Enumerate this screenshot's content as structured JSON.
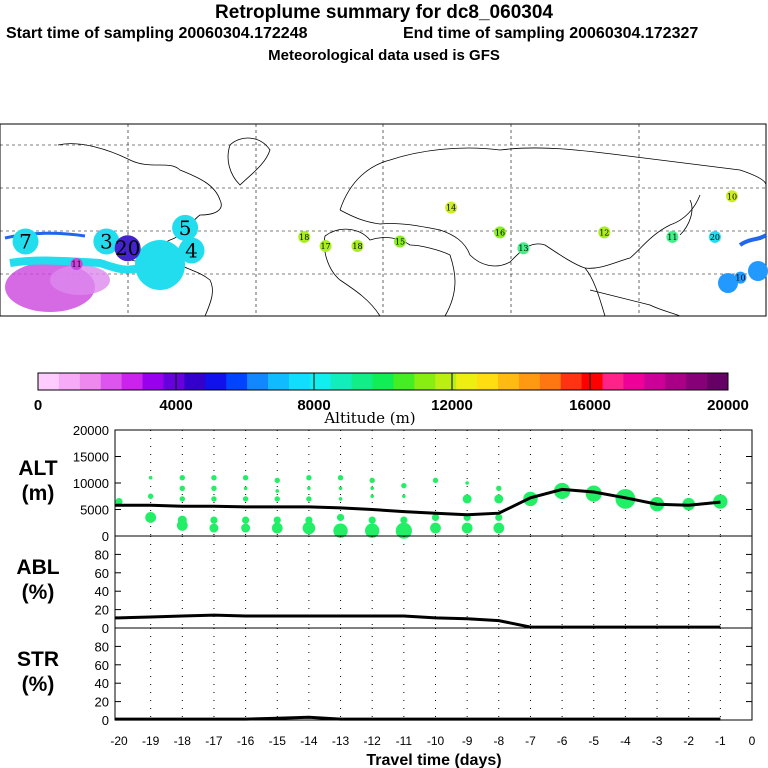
{
  "header": {
    "title": "Retroplume summary for dc8_060304",
    "start_sampling": "Start time of sampling 20060304.172248",
    "end_sampling": "End time of sampling 20060304.172327",
    "met": "Meteorological data used is GFS"
  },
  "map": {
    "day_labels": [
      {
        "n": "7",
        "lon": -168,
        "lat": 18,
        "col": "#22ddee"
      },
      {
        "n": "3",
        "lon": -130,
        "lat": 18,
        "col": "#22ddee"
      },
      {
        "n": "20",
        "lon": -120,
        "lat": 15,
        "col": "#4422cc"
      },
      {
        "n": "5",
        "lon": -93,
        "lat": 24,
        "col": "#22ddee"
      },
      {
        "n": "4",
        "lon": -90,
        "lat": 14,
        "col": "#22ddee"
      },
      {
        "n": "11",
        "lon": -144,
        "lat": 8,
        "col": "#cc44dd"
      },
      {
        "n": "16",
        "lon": 55,
        "lat": 22,
        "col": "#88ee22"
      },
      {
        "n": "18",
        "lon": -37,
        "lat": 20,
        "col": "#aaee22"
      },
      {
        "n": "17",
        "lon": -27,
        "lat": 16,
        "col": "#aaee22"
      },
      {
        "n": "18",
        "lon": -12,
        "lat": 16,
        "col": "#aaee22"
      },
      {
        "n": "15",
        "lon": 8,
        "lat": 18,
        "col": "#88ee22"
      },
      {
        "n": "14",
        "lon": 32,
        "lat": 33,
        "col": "#ccee22"
      },
      {
        "n": "13",
        "lon": 66,
        "lat": 15,
        "col": "#44ee88"
      },
      {
        "n": "12",
        "lon": 104,
        "lat": 22,
        "col": "#aaee22"
      },
      {
        "n": "11",
        "lon": 136,
        "lat": 20,
        "col": "#44ee88"
      },
      {
        "n": "10",
        "lon": 164,
        "lat": 38,
        "col": "#ccee22"
      },
      {
        "n": "20",
        "lon": 156,
        "lat": 20,
        "col": "#22ddee"
      },
      {
        "n": "10",
        "lon": 168,
        "lat": 2,
        "col": "#2299ff"
      }
    ]
  },
  "colorbar": {
    "colors": [
      "#ffccff",
      "#f7aaf7",
      "#ee88ee",
      "#dd55ee",
      "#cc22ee",
      "#9900ee",
      "#6600dd",
      "#3300cc",
      "#1111ee",
      "#0044ff",
      "#1188ff",
      "#11bbff",
      "#11ddff",
      "#11eeee",
      "#11eebb",
      "#11ee88",
      "#11ee55",
      "#44ee22",
      "#88ee11",
      "#bbee11",
      "#eeee11",
      "#ffdd11",
      "#ffbb11",
      "#ff9911",
      "#ff7711",
      "#ff3311",
      "#ff0000",
      "#ff2288",
      "#ee0099",
      "#cc0099",
      "#aa0088",
      "#880077",
      "#660066"
    ],
    "tick_labels": [
      "0",
      "4000",
      "8000",
      "12000",
      "16000",
      "20000"
    ],
    "label": "Altitude (m)"
  },
  "chart_data": [
    {
      "type": "line",
      "panel": "ALT",
      "ylabel": "ALT (m)",
      "ylabel_top": "ALT",
      "ylabel_bottom": "(m)",
      "ylim": [
        0,
        20000
      ],
      "yticks": [
        "0",
        "5000",
        "10000",
        "15000",
        "20000"
      ],
      "x": [
        -20,
        -19,
        -18,
        -17,
        -16,
        -15,
        -14,
        -13,
        -12,
        -11,
        -10,
        -9,
        -8,
        -7,
        -6,
        -5,
        -4,
        -3,
        -2,
        -1
      ],
      "values": [
        5800,
        5800,
        5600,
        5600,
        5500,
        5500,
        5500,
        5300,
        5000,
        4600,
        4300,
        4000,
        4300,
        7200,
        8800,
        8300,
        7200,
        6000,
        5800,
        6400
      ],
      "scatter_points": [
        {
          "x": -20,
          "y": 6500,
          "s": 4
        },
        {
          "x": -19,
          "y": 3500,
          "s": 6
        },
        {
          "x": -19,
          "y": 7500,
          "s": 3
        },
        {
          "x": -19,
          "y": 11000,
          "s": 2
        },
        {
          "x": -18,
          "y": 2000,
          "s": 6
        },
        {
          "x": -18,
          "y": 3000,
          "s": 5
        },
        {
          "x": -18,
          "y": 7000,
          "s": 3
        },
        {
          "x": -18,
          "y": 9000,
          "s": 3
        },
        {
          "x": -18,
          "y": 11000,
          "s": 3
        },
        {
          "x": -17,
          "y": 1500,
          "s": 5
        },
        {
          "x": -17,
          "y": 3000,
          "s": 4
        },
        {
          "x": -17,
          "y": 7000,
          "s": 3
        },
        {
          "x": -17,
          "y": 9000,
          "s": 3
        },
        {
          "x": -17,
          "y": 11000,
          "s": 3
        },
        {
          "x": -16,
          "y": 1500,
          "s": 5
        },
        {
          "x": -16,
          "y": 3000,
          "s": 4
        },
        {
          "x": -16,
          "y": 7000,
          "s": 3
        },
        {
          "x": -16,
          "y": 9000,
          "s": 2
        },
        {
          "x": -16,
          "y": 11000,
          "s": 3
        },
        {
          "x": -15,
          "y": 1500,
          "s": 6
        },
        {
          "x": -15,
          "y": 3000,
          "s": 4
        },
        {
          "x": -15,
          "y": 7000,
          "s": 3
        },
        {
          "x": -15,
          "y": 8500,
          "s": 2
        },
        {
          "x": -15,
          "y": 10500,
          "s": 3
        },
        {
          "x": -14,
          "y": 1500,
          "s": 7
        },
        {
          "x": -14,
          "y": 3000,
          "s": 4
        },
        {
          "x": -14,
          "y": 7000,
          "s": 3
        },
        {
          "x": -14,
          "y": 9000,
          "s": 2
        },
        {
          "x": -14,
          "y": 11000,
          "s": 3
        },
        {
          "x": -13,
          "y": 1000,
          "s": 8
        },
        {
          "x": -13,
          "y": 3500,
          "s": 4
        },
        {
          "x": -13,
          "y": 7000,
          "s": 2
        },
        {
          "x": -13,
          "y": 9000,
          "s": 2
        },
        {
          "x": -13,
          "y": 11000,
          "s": 3
        },
        {
          "x": -12,
          "y": 1000,
          "s": 8
        },
        {
          "x": -12,
          "y": 3000,
          "s": 4
        },
        {
          "x": -12,
          "y": 7500,
          "s": 2
        },
        {
          "x": -12,
          "y": 9000,
          "s": 2
        },
        {
          "x": -12,
          "y": 10500,
          "s": 3
        },
        {
          "x": -11,
          "y": 1000,
          "s": 9
        },
        {
          "x": -11,
          "y": 3000,
          "s": 4
        },
        {
          "x": -11,
          "y": 7500,
          "s": 2
        },
        {
          "x": -11,
          "y": 9500,
          "s": 3
        },
        {
          "x": -10,
          "y": 1500,
          "s": 6
        },
        {
          "x": -10,
          "y": 3500,
          "s": 4
        },
        {
          "x": -10,
          "y": 10500,
          "s": 3
        },
        {
          "x": -9,
          "y": 1500,
          "s": 6
        },
        {
          "x": -9,
          "y": 3500,
          "s": 4
        },
        {
          "x": -9,
          "y": 7000,
          "s": 5
        },
        {
          "x": -9,
          "y": 10000,
          "s": 2
        },
        {
          "x": -8,
          "y": 1500,
          "s": 6
        },
        {
          "x": -8,
          "y": 3500,
          "s": 4
        },
        {
          "x": -8,
          "y": 7000,
          "s": 5
        },
        {
          "x": -8,
          "y": 9000,
          "s": 3
        },
        {
          "x": -7,
          "y": 7000,
          "s": 8
        },
        {
          "x": -6,
          "y": 8500,
          "s": 9
        },
        {
          "x": -5,
          "y": 8000,
          "s": 9
        },
        {
          "x": -4,
          "y": 7000,
          "s": 11
        },
        {
          "x": -3,
          "y": 6000,
          "s": 8
        },
        {
          "x": -2,
          "y": 6000,
          "s": 7
        },
        {
          "x": -1,
          "y": 6500,
          "s": 8
        }
      ]
    },
    {
      "type": "line",
      "panel": "ABL",
      "ylabel": "ABL (%)",
      "ylabel_top": "ABL",
      "ylabel_bottom": "(%)",
      "ylim": [
        0,
        100
      ],
      "yticks": [
        "0",
        "20",
        "40",
        "60",
        "80"
      ],
      "x": [
        -20,
        -19,
        -18,
        -17,
        -16,
        -15,
        -14,
        -13,
        -12,
        -11,
        -10,
        -9,
        -8,
        -7,
        -6,
        -5,
        -4,
        -3,
        -2,
        -1
      ],
      "values": [
        11,
        12,
        13,
        14,
        13,
        13,
        13,
        13,
        13,
        13,
        11,
        10,
        8,
        1,
        1,
        1,
        1,
        1,
        1,
        1
      ]
    },
    {
      "type": "line",
      "panel": "STR",
      "ylabel": "STR (%)",
      "ylabel_top": "STR",
      "ylabel_bottom": "(%)",
      "ylim": [
        0,
        100
      ],
      "yticks": [
        "0",
        "20",
        "40",
        "60",
        "80"
      ],
      "x": [
        -20,
        -19,
        -18,
        -17,
        -16,
        -15,
        -14,
        -13,
        -12,
        -11,
        -10,
        -9,
        -8,
        -7,
        -6,
        -5,
        -4,
        -3,
        -2,
        -1
      ],
      "values": [
        1,
        1,
        1,
        1,
        1,
        2,
        3,
        1,
        1,
        1,
        1,
        1,
        1,
        1,
        1,
        1,
        1,
        1,
        1,
        1
      ],
      "xlabel": "Travel time (days)",
      "xticks": [
        "-20",
        "-19",
        "-18",
        "-17",
        "-16",
        "-15",
        "-14",
        "-13",
        "-12",
        "-11",
        "-10",
        "-9",
        "-8",
        "-7",
        "-6",
        "-5",
        "-4",
        "-3",
        "-2",
        "-1",
        "0"
      ]
    }
  ]
}
